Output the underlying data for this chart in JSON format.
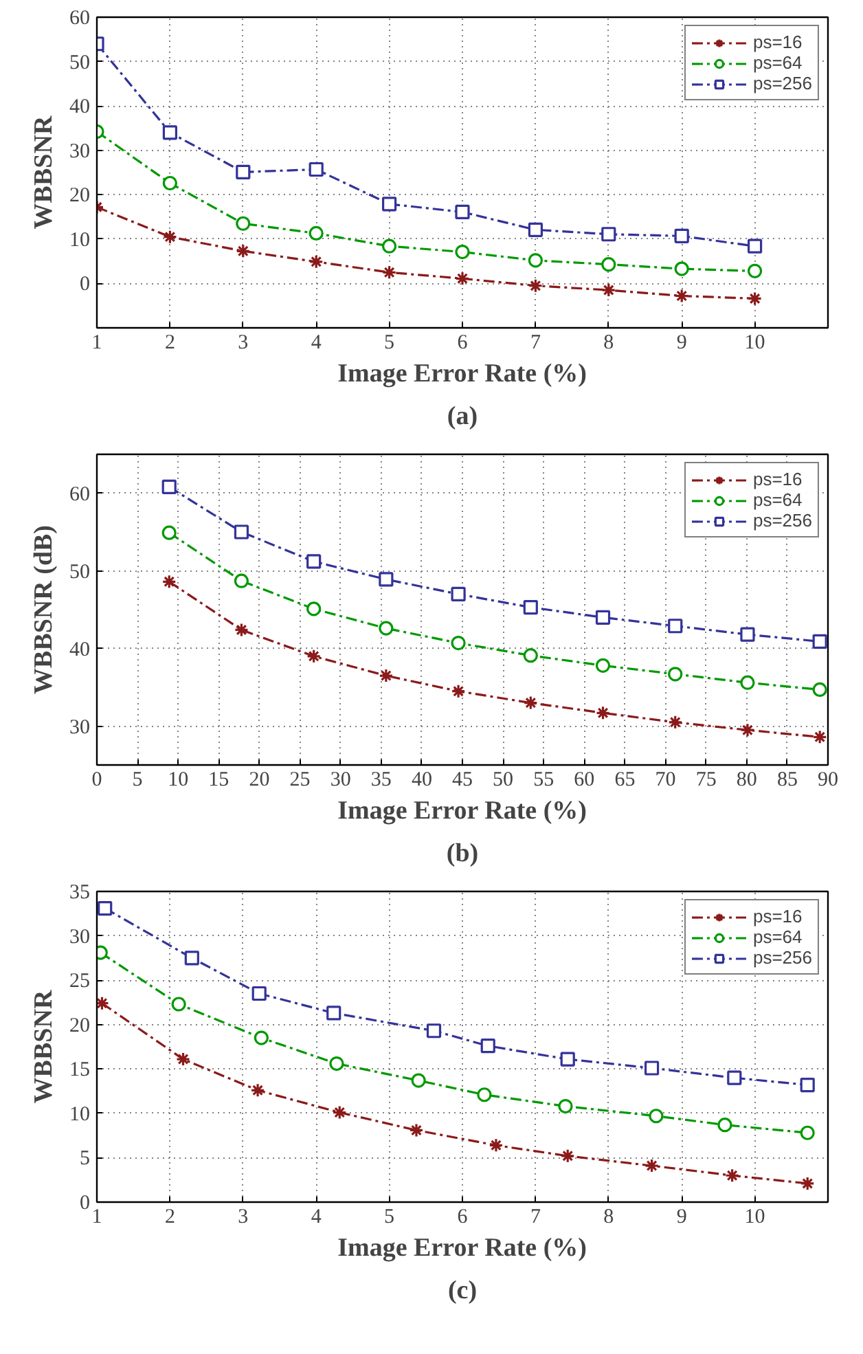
{
  "chart_data": [
    {
      "type": "line",
      "xlabel": "Image Error Rate (%)",
      "ylabel": "WBBSNR",
      "annotations": [
        "(a)"
      ],
      "xlim": [
        1,
        11
      ],
      "ylim": [
        -10,
        60
      ],
      "xticks": [
        1,
        2,
        3,
        4,
        5,
        6,
        7,
        8,
        9,
        10
      ],
      "yticks": [
        0,
        10,
        20,
        30,
        40,
        50,
        60
      ],
      "grid": true,
      "legend": "top right",
      "line_style": "dashed",
      "x": [
        1,
        2,
        3,
        4,
        5,
        6,
        7,
        8,
        9,
        10
      ],
      "series": [
        {
          "name": "ps=16",
          "color": "#8b1a1a",
          "marker": "cross",
          "values": [
            17.2,
            10.5,
            7.3,
            4.9,
            2.5,
            1.1,
            -0.5,
            -1.5,
            -2.8,
            -3.4
          ]
        },
        {
          "name": "ps=64",
          "color": "#009900",
          "marker": "circle",
          "values": [
            34.2,
            22.6,
            13.5,
            11.3,
            8.4,
            7.1,
            5.2,
            4.3,
            3.3,
            2.8
          ]
        },
        {
          "name": "ps=256",
          "color": "#33339a",
          "marker": "square",
          "values": [
            54.0,
            34.0,
            25.1,
            25.7,
            17.9,
            16.1,
            12.1,
            11.1,
            10.7,
            8.4
          ]
        }
      ]
    },
    {
      "type": "line",
      "xlabel": "Image Error Rate (%)",
      "ylabel": "WBBSNR (dB)",
      "annotations": [
        "(b)"
      ],
      "xlim": [
        0,
        90
      ],
      "ylim": [
        25,
        65
      ],
      "xticks": [
        0,
        5,
        10,
        15,
        20,
        25,
        30,
        35,
        40,
        45,
        50,
        55,
        60,
        65,
        70,
        75,
        80,
        85,
        90
      ],
      "yticks": [
        30,
        40,
        50,
        60
      ],
      "grid": true,
      "legend": "top right",
      "line_style": "dashed",
      "x": [
        8.9,
        17.8,
        26.7,
        35.6,
        44.5,
        53.4,
        62.3,
        71.2,
        80.1,
        89.0
      ],
      "series": [
        {
          "name": "ps=16",
          "color": "#8b1a1a",
          "marker": "cross",
          "values": [
            48.6,
            42.4,
            39.0,
            36.5,
            34.5,
            33.0,
            31.7,
            30.5,
            29.5,
            28.6
          ]
        },
        {
          "name": "ps=64",
          "color": "#009900",
          "marker": "circle",
          "values": [
            54.9,
            48.7,
            45.1,
            42.6,
            40.7,
            39.1,
            37.8,
            36.7,
            35.6,
            34.7
          ]
        },
        {
          "name": "ps=256",
          "color": "#33339a",
          "marker": "square",
          "values": [
            60.8,
            55.0,
            51.2,
            48.9,
            47.0,
            45.3,
            44.0,
            42.9,
            41.8,
            40.9
          ]
        }
      ]
    },
    {
      "type": "line",
      "xlabel": "Image Error Rate (%)",
      "ylabel": "WBBSNR",
      "annotations": [
        "(c)"
      ],
      "xlim": [
        1,
        11
      ],
      "ylim": [
        0,
        35
      ],
      "xticks": [
        1,
        2,
        3,
        4,
        5,
        6,
        7,
        8,
        9,
        10
      ],
      "yticks": [
        0,
        5,
        10,
        15,
        20,
        25,
        30,
        35
      ],
      "grid": true,
      "legend": "top right",
      "line_style": "dashed",
      "series": [
        {
          "name": "ps=16",
          "color": "#8b1a1a",
          "marker": "cross",
          "x": [
            1.07,
            2.18,
            3.2,
            4.32,
            5.37,
            6.46,
            7.44,
            8.59,
            9.69,
            10.72
          ],
          "values": [
            22.4,
            16.1,
            12.6,
            10.1,
            8.1,
            6.4,
            5.2,
            4.1,
            3.0,
            2.1
          ]
        },
        {
          "name": "ps=64",
          "color": "#009900",
          "marker": "circle",
          "x": [
            1.05,
            2.12,
            3.25,
            4.28,
            5.4,
            6.3,
            7.41,
            8.65,
            9.59,
            10.72
          ],
          "values": [
            28.1,
            22.3,
            18.5,
            15.6,
            13.7,
            12.1,
            10.8,
            9.7,
            8.7,
            7.8
          ]
        },
        {
          "name": "ps=256",
          "color": "#33339a",
          "marker": "square",
          "x": [
            1.11,
            2.3,
            3.22,
            4.24,
            5.61,
            6.35,
            7.44,
            8.59,
            9.72,
            10.72
          ],
          "values": [
            33.1,
            27.5,
            23.5,
            21.3,
            19.3,
            17.6,
            16.1,
            15.1,
            14.0,
            13.2
          ]
        }
      ]
    }
  ]
}
